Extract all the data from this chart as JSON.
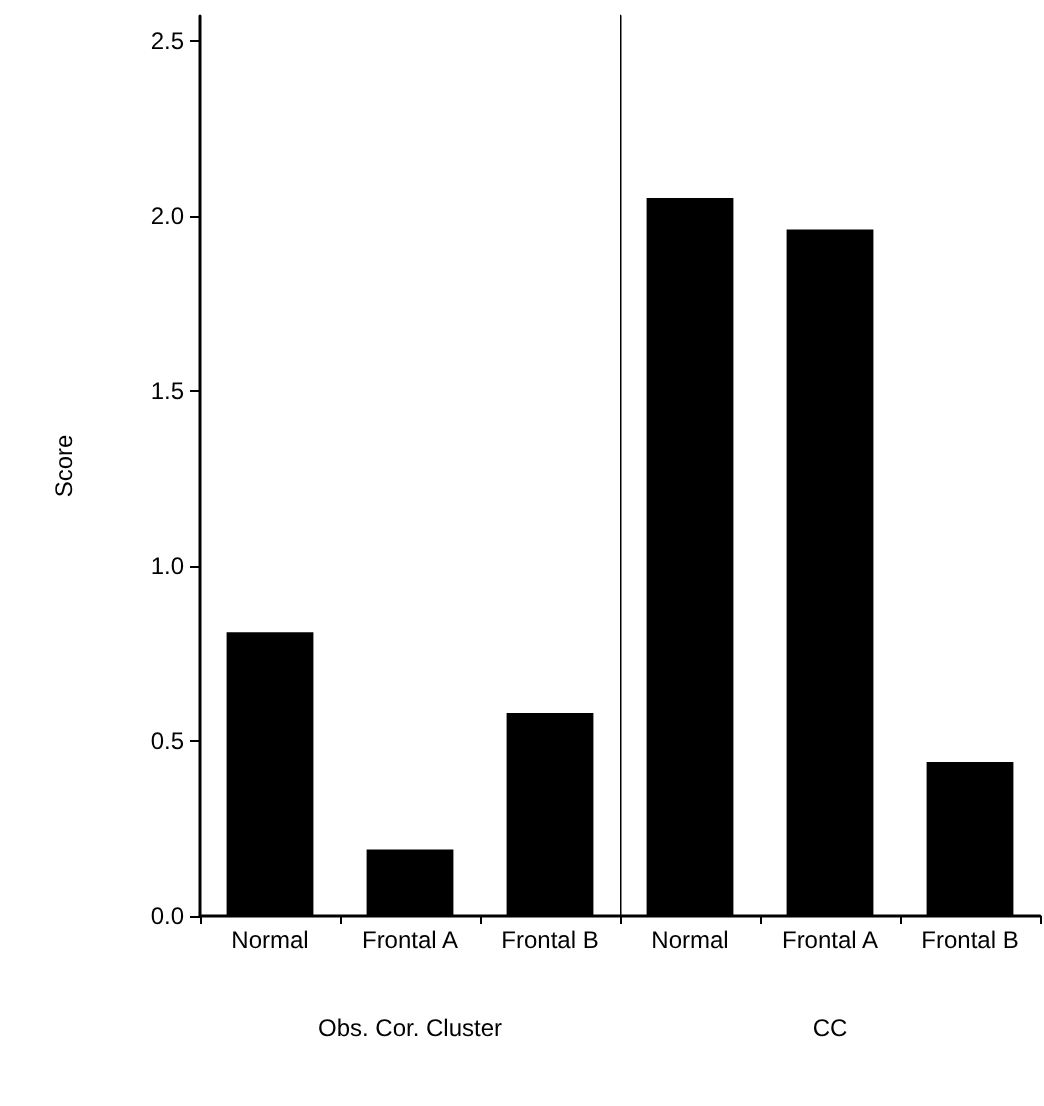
{
  "chart_data": [
    {
      "type": "bar",
      "categories": [
        "Normal",
        "Frontal A",
        "Frontal B"
      ],
      "values": [
        0.81,
        0.19,
        0.58
      ],
      "color": "#000000",
      "xlabel": "Obs. Cor. Cluster",
      "ylabel": "Score",
      "ylim": [
        0,
        2.57
      ],
      "yticks": [
        {
          "value": 0,
          "label": "0.0"
        },
        {
          "value": 0.5,
          "label": "0.5"
        },
        {
          "value": 1,
          "label": "1.0"
        },
        {
          "value": 1.5,
          "label": "1.5"
        },
        {
          "value": 2,
          "label": "2.0"
        },
        {
          "value": 2.5,
          "label": "2.5"
        }
      ]
    },
    {
      "type": "bar",
      "categories": [
        "Normal",
        "Frontal A",
        "Frontal B"
      ],
      "values": [
        2.05,
        1.96,
        0.44
      ],
      "color": "#000000",
      "xlabel": "CC",
      "ylim": [
        0,
        2.57
      ],
      "tick_labels": "x"
    }
  ]
}
